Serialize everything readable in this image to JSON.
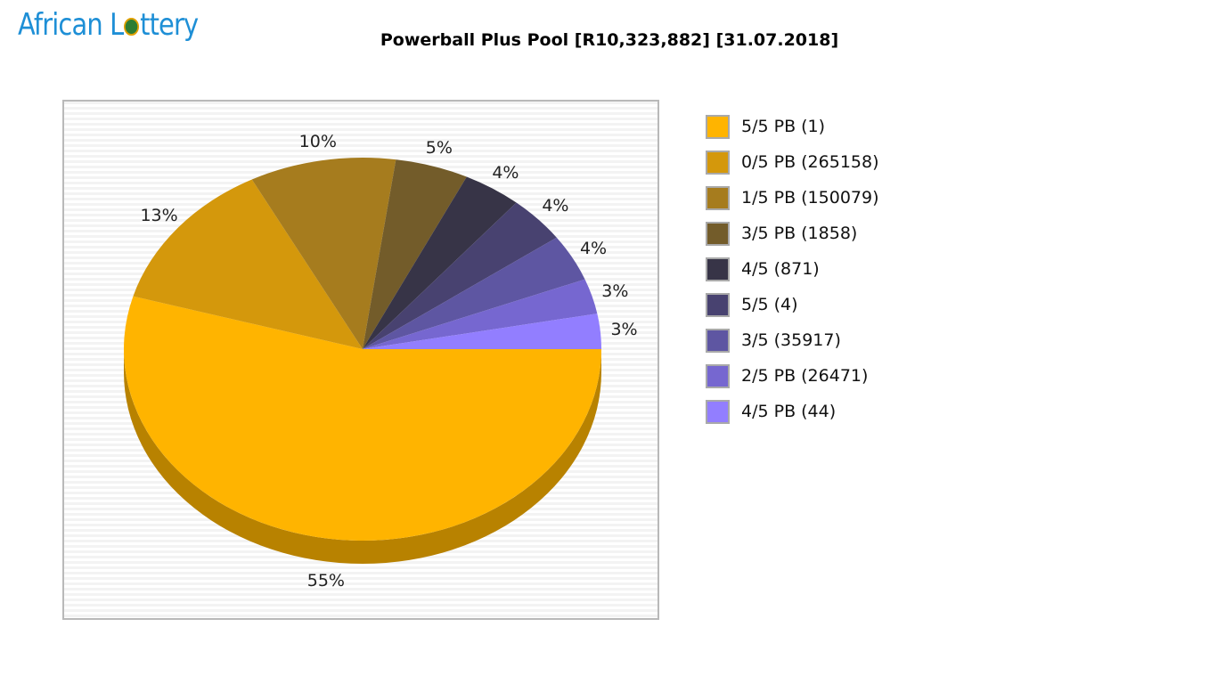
{
  "header": {
    "logo_text_left": "African L",
    "logo_text_right": "ttery"
  },
  "chart_data": {
    "type": "pie",
    "title": "Powerball Plus Pool [R10,323,882] [31.07.2018]",
    "legend_position": "right",
    "slices": [
      {
        "label": "5/5 PB (1)",
        "percent_label": "55%",
        "value": 55,
        "color": "#ffb400"
      },
      {
        "label": "0/5 PB (265158)",
        "percent_label": "13%",
        "value": 13,
        "color": "#d4980c"
      },
      {
        "label": "1/5 PB (150079)",
        "percent_label": "10%",
        "value": 10,
        "color": "#a67c1e"
      },
      {
        "label": "3/5 PB (1858)",
        "percent_label": "5%",
        "value": 5,
        "color": "#735c2a"
      },
      {
        "label": "4/5 (871)",
        "percent_label": "4%",
        "value": 4,
        "color": "#373447"
      },
      {
        "label": "5/5 (4)",
        "percent_label": "4%",
        "value": 4,
        "color": "#484270"
      },
      {
        "label": "3/5 (35917)",
        "percent_label": "4%",
        "value": 4,
        "color": "#5e56a2"
      },
      {
        "label": "2/5 PB (26471)",
        "percent_label": "3%",
        "value": 3,
        "color": "#7667d0"
      },
      {
        "label": "4/5 PB (44)",
        "percent_label": "3%",
        "value": 3,
        "color": "#927eff"
      }
    ]
  }
}
